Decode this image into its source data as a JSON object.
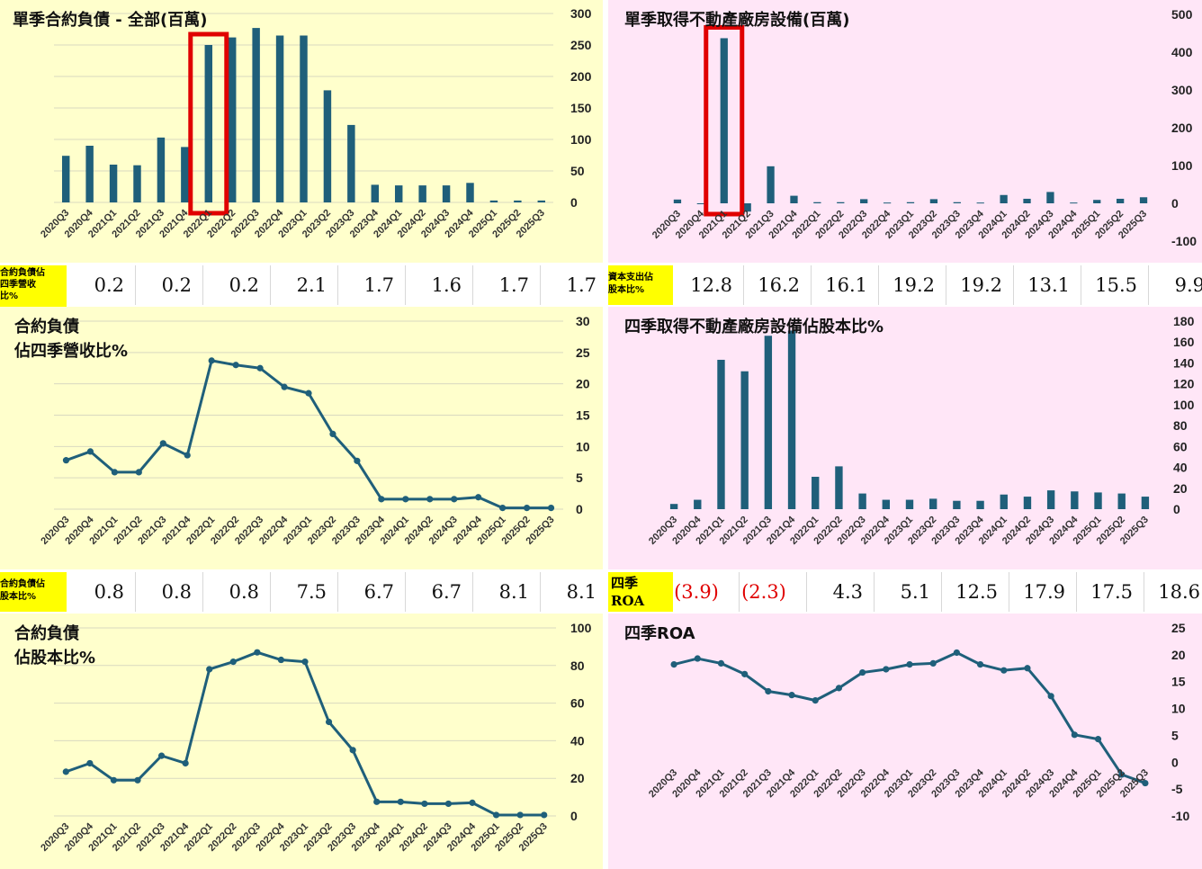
{
  "colors": {
    "left_bg": "#ffffcc",
    "right_bg": "#ffe6f7",
    "series": "#1f5f7a",
    "highlight": "#e00000",
    "strip_label_bg": "#ffff00",
    "gridline": "#d9d9c0"
  },
  "categories": [
    "2020Q3",
    "2020Q4",
    "2021Q1",
    "2021Q2",
    "2021Q3",
    "2021Q4",
    "2022Q1",
    "2022Q2",
    "2022Q3",
    "2022Q4",
    "2023Q1",
    "2023Q2",
    "2023Q3",
    "2023Q4",
    "2024Q1",
    "2024Q2",
    "2024Q3",
    "2024Q4",
    "2025Q1",
    "2025Q2",
    "2025Q3"
  ],
  "charts": {
    "c1": {
      "title": "單季合約負債 - 全部(百萬)",
      "type": "bar",
      "ylim": [
        0,
        300
      ],
      "yticks": [
        "0",
        "50",
        "100",
        "150",
        "200",
        "250",
        "300"
      ],
      "values": [
        74,
        90,
        60,
        59,
        103,
        88,
        250,
        262,
        277,
        265,
        265,
        178,
        123,
        28,
        27,
        27,
        27,
        31,
        3,
        3,
        3
      ],
      "highlight_category": "2022Q1"
    },
    "c2": {
      "title": "單季取得不動產廠房設備(百萬)",
      "type": "bar",
      "ylim": [
        -100,
        500
      ],
      "yticks": [
        "-100",
        "0",
        "100",
        "200",
        "300",
        "400",
        "500"
      ],
      "values": [
        10,
        0,
        437,
        -22,
        98,
        20,
        3,
        3,
        11,
        2,
        3,
        11,
        3,
        2,
        22,
        12,
        30,
        2,
        9,
        12,
        16
      ],
      "highlight_category": "2021Q1"
    },
    "c3": {
      "title_lines": [
        "合約負債",
        "佔四季營收比%"
      ],
      "type": "line",
      "ylim": [
        0,
        30
      ],
      "yticks": [
        "0",
        "5",
        "10",
        "15",
        "20",
        "25",
        "30"
      ],
      "values": [
        7.8,
        9.2,
        5.9,
        5.9,
        10.5,
        8.6,
        23.7,
        23.0,
        22.5,
        19.5,
        18.5,
        12.0,
        7.7,
        1.6,
        1.6,
        1.6,
        1.6,
        1.9,
        0.2,
        0.2,
        0.2
      ]
    },
    "c4": {
      "title": "四季取得不動產廠房設備佔股本比%",
      "type": "bar",
      "ylim": [
        0,
        180
      ],
      "yticks": [
        "0",
        "20",
        "40",
        "60",
        "80",
        "100",
        "120",
        "140",
        "160",
        "180"
      ],
      "values": [
        5,
        9,
        143,
        132,
        166,
        171,
        31,
        41,
        15,
        9,
        9,
        10,
        8,
        8,
        14,
        12,
        18,
        17,
        16,
        15,
        12
      ]
    },
    "c5": {
      "title_lines": [
        "合約負債",
        "佔股本比%"
      ],
      "type": "line",
      "ylim": [
        0,
        100
      ],
      "yticks": [
        "0",
        "20",
        "40",
        "60",
        "80",
        "100"
      ],
      "values": [
        23.5,
        28.0,
        19.0,
        19.0,
        32.0,
        28.0,
        78.0,
        82.0,
        87.0,
        83.0,
        82.0,
        50.0,
        35.0,
        7.5,
        7.5,
        6.5,
        6.5,
        7.0,
        0.5,
        0.5,
        0.5
      ]
    },
    "c6": {
      "title": "四季ROA",
      "type": "line",
      "ylim": [
        -10,
        25
      ],
      "yticks": [
        "-10",
        "-5",
        "0",
        "5",
        "10",
        "15",
        "20",
        "25"
      ],
      "values": [
        18.2,
        19.3,
        18.4,
        16.4,
        13.2,
        12.5,
        11.5,
        13.8,
        16.7,
        17.3,
        18.2,
        18.4,
        20.4,
        18.2,
        17.1,
        17.5,
        12.3,
        5.1,
        4.3,
        -2.3,
        -3.9
      ]
    }
  },
  "strips": {
    "s1": {
      "label_lines": [
        "合約負債佔",
        "四季營收",
        "比%"
      ],
      "values": [
        "0.2",
        "0.2",
        "0.2",
        "2.1",
        "1.7",
        "1.6",
        "1.7",
        "1.7"
      ]
    },
    "s2": {
      "label_lines": [
        "資本支出佔",
        "股本比%"
      ],
      "values": [
        "12.8",
        "16.2",
        "16.1",
        "19.2",
        "19.2",
        "13.1",
        "15.5",
        "9.9"
      ]
    },
    "s3": {
      "label_lines": [
        "合約負債佔",
        "股本比%"
      ],
      "values": [
        "0.8",
        "0.8",
        "0.8",
        "7.5",
        "6.7",
        "6.7",
        "8.1",
        "8.1"
      ]
    },
    "s4": {
      "label_lines": [
        "四季",
        "ROA"
      ],
      "values": [
        "(3.9)",
        "(2.3)",
        "4.3",
        "5.1",
        "12.5",
        "17.9",
        "17.5",
        "18.6"
      ]
    }
  }
}
